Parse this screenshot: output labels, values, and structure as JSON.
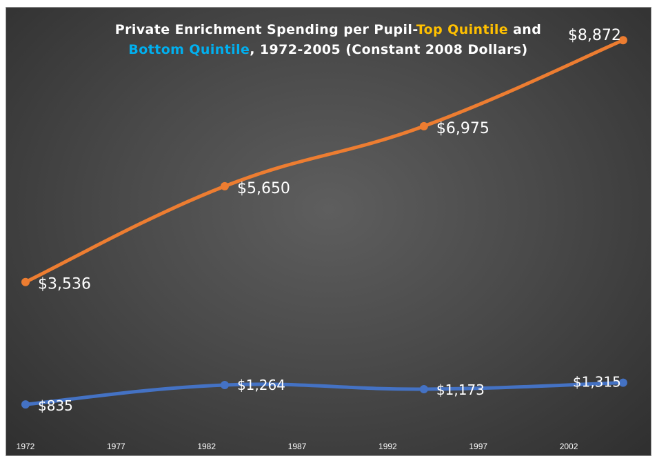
{
  "chart_data": {
    "type": "line",
    "title": {
      "part1": "Private Enrichment Spending per Pupil-",
      "part2": "Top Quintile",
      "part3": " and",
      "part4": "Bottom Quintile",
      "part5": ", 1972-2005 (Constant 2008 Dollars)"
    },
    "title_colors": {
      "text": "#ffffff",
      "top": "#ffc000",
      "bottom": "#00b0f0"
    },
    "xlabel": "",
    "ylabel": "",
    "x_ticks": [
      "1972",
      "1977",
      "1982",
      "1987",
      "1992",
      "1997",
      "2002"
    ],
    "xlim": [
      1972,
      2005.5
    ],
    "ylim": [
      0,
      9500
    ],
    "grid": false,
    "legend": "none",
    "series": [
      {
        "color": "#ed7d31",
        "x": [
          1972,
          1983,
          1994,
          2005
        ],
        "values": [
          3536,
          5650,
          6975,
          8872
        ],
        "labels": [
          "$3,536",
          "$5,650",
          "$6,975",
          "$8,872"
        ]
      },
      {
        "color": "#4472c4",
        "x": [
          1972,
          1983,
          1994,
          2005
        ],
        "values": [
          835,
          1264,
          1173,
          1315
        ],
        "labels": [
          "$835",
          "$1,264",
          "$1,173",
          "$1,315"
        ]
      }
    ]
  }
}
